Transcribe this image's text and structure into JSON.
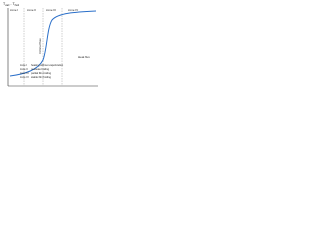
{
  "y_axis_label": {
    "main1": "T",
    "sub1": "wall",
    "main2": " - T",
    "sub2": "fluid"
  },
  "x_axis_label": "Heat flux",
  "curve_annotation": "Critical flow",
  "zones": [
    "zone I",
    "zone II",
    "zone III",
    "zone IV"
  ],
  "legend": [
    {
      "zone": "zone I",
      "text": "heating without vaporization"
    },
    {
      "zone": "zone II",
      "text": "nucleate boiling"
    },
    {
      "zone": "zone III",
      "text": "partial film boiling"
    },
    {
      "zone": "zone IV",
      "text": "stable film boiling"
    }
  ]
}
